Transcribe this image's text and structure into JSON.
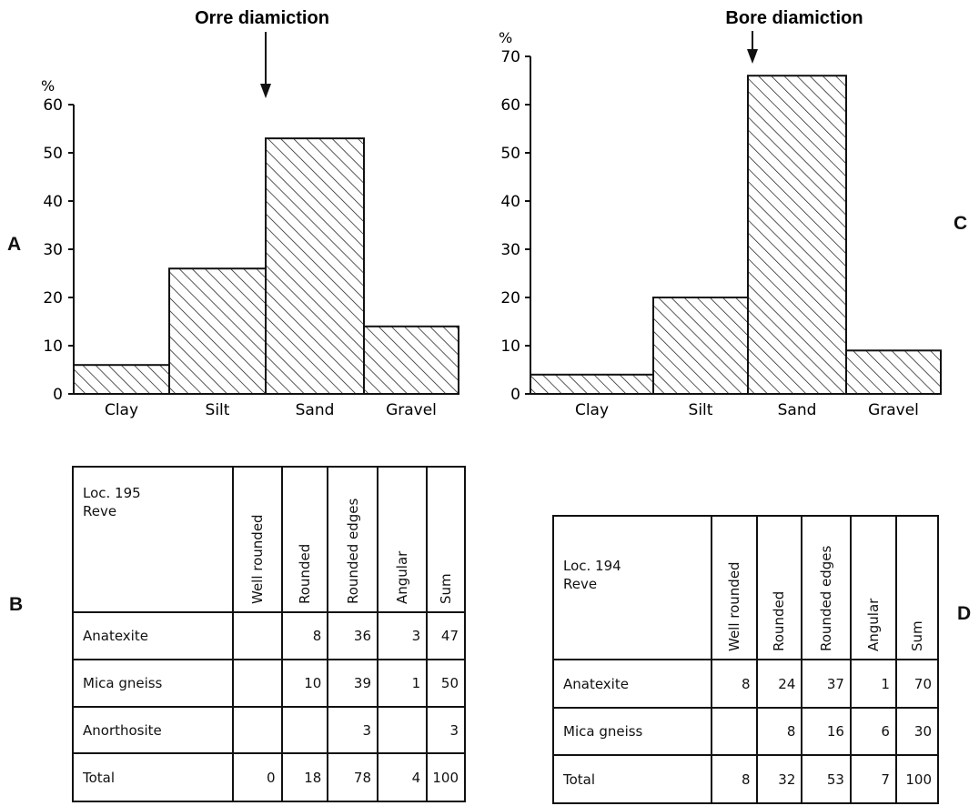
{
  "panels": {
    "a": "A",
    "b": "B",
    "c": "C",
    "d": "D"
  },
  "chart_data": [
    {
      "type": "bar",
      "title": "Orre diamiction",
      "ylabel": "%",
      "categories": [
        "Clay",
        "Silt",
        "Sand",
        "Gravel"
      ],
      "values": [
        6,
        26,
        53,
        14
      ],
      "ylim": [
        0,
        60
      ],
      "yticks": [
        "0",
        "10",
        "20",
        "30",
        "40",
        "50",
        "60"
      ],
      "arrow_category": "Sand"
    },
    {
      "type": "bar",
      "title": "Bore diamiction",
      "ylabel": "%",
      "categories": [
        "Clay",
        "Silt",
        "Sand",
        "Gravel"
      ],
      "values": [
        4,
        20,
        66,
        9
      ],
      "ylim": [
        0,
        70
      ],
      "yticks": [
        "0",
        "10",
        "20",
        "30",
        "40",
        "50",
        "60",
        "70"
      ],
      "arrow_category": "Sand"
    }
  ],
  "table_b": {
    "location": "Loc. 195",
    "place": "Reve",
    "columns": [
      "Well rounded",
      "Rounded",
      "Rounded edges",
      "Angular",
      "Sum"
    ],
    "rows": [
      {
        "label": "Anatexite",
        "cells": [
          "",
          "8",
          "36",
          "3",
          "47"
        ]
      },
      {
        "label": "Mica gneiss",
        "cells": [
          "",
          "10",
          "39",
          "1",
          "50"
        ]
      },
      {
        "label": "Anorthosite",
        "cells": [
          "",
          "",
          "3",
          "",
          "3"
        ]
      },
      {
        "label": "Total",
        "cells": [
          "0",
          "18",
          "78",
          "4",
          "100"
        ]
      }
    ]
  },
  "table_d": {
    "location": "Loc. 194",
    "place": "Reve",
    "columns": [
      "Well rounded",
      "Rounded",
      "Rounded edges",
      "Angular",
      "Sum"
    ],
    "rows": [
      {
        "label": "Anatexite",
        "cells": [
          "8",
          "24",
          "37",
          "1",
          "70"
        ]
      },
      {
        "label": "Mica gneiss",
        "cells": [
          "",
          "8",
          "16",
          "6",
          "30"
        ]
      },
      {
        "label": "Total",
        "cells": [
          "8",
          "32",
          "53",
          "7",
          "100"
        ]
      }
    ]
  }
}
